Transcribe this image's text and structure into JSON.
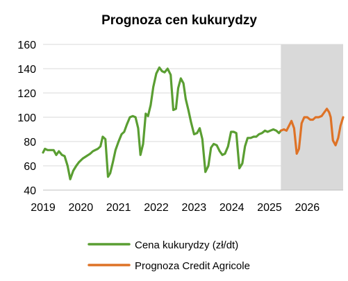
{
  "chart_data": {
    "type": "line",
    "title": "Prognoza cen kukurydzy",
    "xlabel": "",
    "ylabel": "",
    "xlim": [
      2019.0,
      2026.95
    ],
    "ylim": [
      40,
      160
    ],
    "y_ticks": [
      40,
      60,
      80,
      100,
      120,
      140,
      160
    ],
    "x_tick_labels": [
      "2019",
      "2020",
      "2021",
      "2022",
      "2023",
      "2024",
      "2025",
      "2026"
    ],
    "forecast_shade": {
      "from": 2025.3,
      "to": 2026.95,
      "color": "#d9d9d9"
    },
    "grid": "horizontal",
    "legend": {
      "placement": "bottom"
    },
    "series": [
      {
        "name": "Cena kukurydzy (zł/dt)",
        "color": "#5a9e32",
        "x": [
          2019.0,
          2019.05,
          2019.12,
          2019.2,
          2019.28,
          2019.35,
          2019.42,
          2019.5,
          2019.57,
          2019.65,
          2019.72,
          2019.8,
          2019.88,
          2019.95,
          2020.05,
          2020.15,
          2020.25,
          2020.32,
          2020.38,
          2020.45,
          2020.52,
          2020.58,
          2020.65,
          2020.72,
          2020.78,
          2020.85,
          2020.92,
          2021.0,
          2021.08,
          2021.15,
          2021.22,
          2021.3,
          2021.38,
          2021.45,
          2021.52,
          2021.58,
          2021.65,
          2021.72,
          2021.78,
          2021.85,
          2021.92,
          2022.0,
          2022.08,
          2022.15,
          2022.22,
          2022.3,
          2022.38,
          2022.45,
          2022.52,
          2022.58,
          2022.65,
          2022.72,
          2022.78,
          2022.85,
          2022.92,
          2023.0,
          2023.08,
          2023.15,
          2023.22,
          2023.3,
          2023.38,
          2023.45,
          2023.52,
          2023.6,
          2023.68,
          2023.75,
          2023.82,
          2023.9,
          2023.98,
          2024.05,
          2024.12,
          2024.2,
          2024.28,
          2024.35,
          2024.42,
          2024.5,
          2024.58,
          2024.65,
          2024.72,
          2024.8,
          2024.88,
          2024.95,
          2025.02,
          2025.1,
          2025.18,
          2025.25,
          2025.3
        ],
        "y": [
          71,
          74,
          73,
          73,
          73,
          69,
          72,
          69,
          68,
          60,
          49,
          56,
          60,
          63,
          66,
          68,
          70,
          72,
          73,
          74,
          76,
          84,
          82,
          51,
          54,
          63,
          73,
          80,
          86,
          88,
          94,
          100,
          101,
          100,
          91,
          69,
          78,
          103,
          101,
          110,
          125,
          136,
          141,
          138,
          137,
          140,
          135,
          106,
          107,
          124,
          132,
          128,
          115,
          106,
          96,
          86,
          87,
          91,
          82,
          55,
          60,
          75,
          78,
          77,
          72,
          69,
          70,
          76,
          88,
          88,
          87,
          58,
          62,
          76,
          83,
          83,
          84,
          84,
          86,
          87,
          89,
          88,
          89,
          90,
          89,
          87,
          89
        ]
      },
      {
        "name": "Prognoza Credit Agricole",
        "color": "#de7226",
        "x": [
          2025.3,
          2025.38,
          2025.45,
          2025.5,
          2025.58,
          2025.65,
          2025.72,
          2025.78,
          2025.85,
          2025.92,
          2026.0,
          2026.08,
          2026.15,
          2026.22,
          2026.3,
          2026.38,
          2026.45,
          2026.52,
          2026.58,
          2026.62,
          2026.68,
          2026.75,
          2026.82,
          2026.88,
          2026.95
        ],
        "y": [
          89,
          90,
          89,
          92,
          97,
          91,
          70,
          74,
          95,
          100,
          100,
          98,
          98,
          100,
          100,
          101,
          104,
          107,
          104,
          100,
          81,
          77,
          83,
          93,
          100
        ]
      }
    ]
  }
}
